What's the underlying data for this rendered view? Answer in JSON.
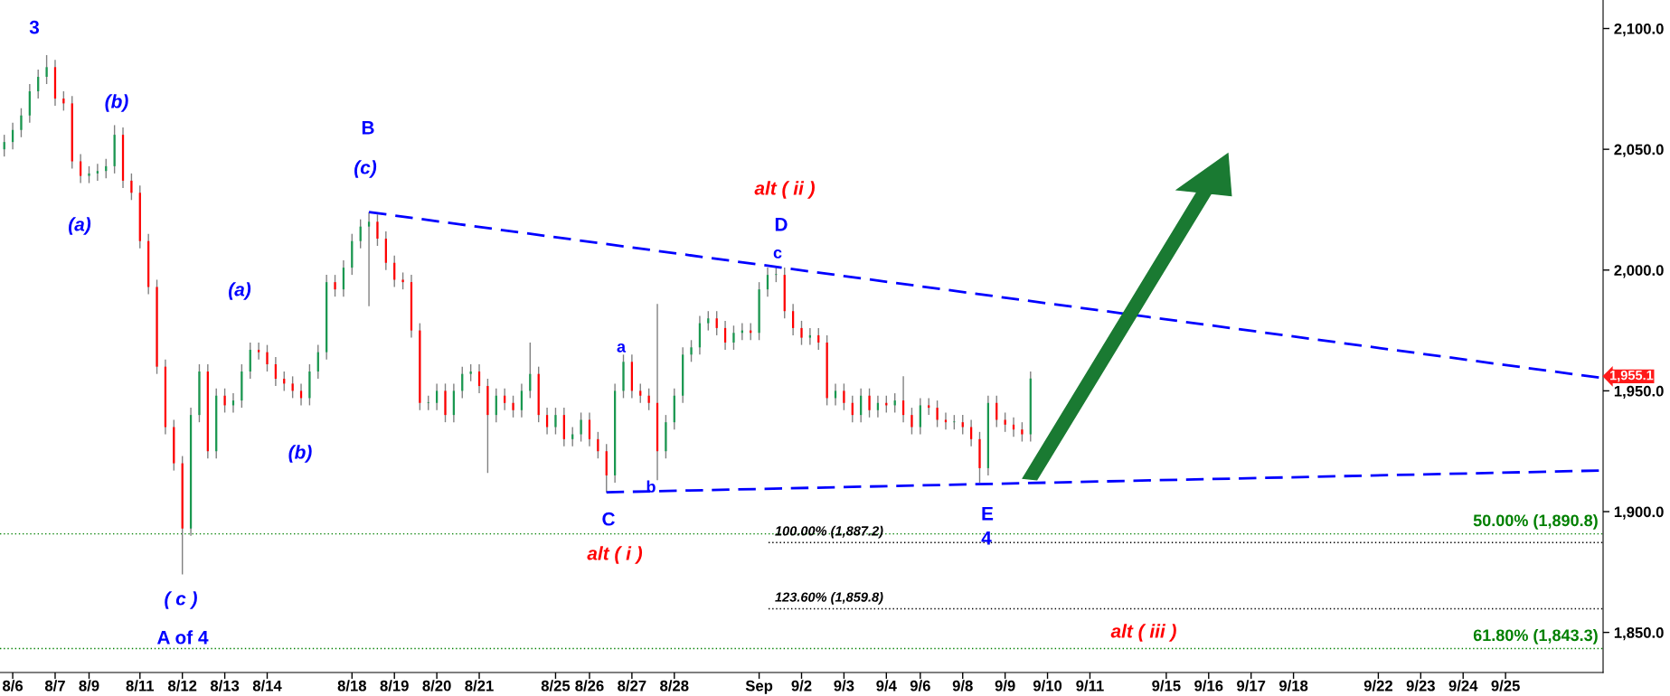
{
  "chart_data": {
    "type": "candlestick",
    "categories": [
      null,
      "8/6",
      null,
      null,
      null,
      null,
      "8/7",
      null,
      null,
      null,
      "8/9",
      null,
      null,
      null,
      null,
      null,
      "8/11",
      null,
      null,
      null,
      null,
      "8/12",
      null,
      null,
      null,
      null,
      "8/13",
      null,
      null,
      null,
      null,
      "8/14",
      null,
      null,
      null,
      null,
      null,
      null,
      null,
      null,
      null,
      "8/18",
      null,
      null,
      null,
      null,
      "8/19",
      null,
      null,
      null,
      null,
      "8/20",
      null,
      null,
      null,
      null,
      "8/21",
      null,
      null,
      null,
      null,
      null,
      null,
      null,
      null,
      "8/25",
      null,
      null,
      null,
      "8/26",
      null,
      null,
      null,
      null,
      "8/27",
      null,
      null,
      null,
      null,
      "8/28",
      null,
      null,
      null,
      null,
      null,
      null,
      null,
      null,
      null,
      "Sep",
      null,
      null,
      null,
      null,
      "9/2",
      null,
      null,
      null,
      null,
      "9/3",
      null,
      null,
      null,
      null,
      "9/4",
      null,
      null,
      null,
      "9/6",
      null,
      null,
      null,
      null,
      "9/8",
      null,
      null,
      null,
      null,
      "9/9",
      null,
      null,
      null,
      null,
      "9/10",
      null,
      null,
      null,
      null,
      "9/11",
      null,
      null,
      null,
      null,
      null,
      null,
      null,
      null,
      "9/15",
      null,
      null,
      null,
      null,
      "9/16",
      null,
      null,
      null,
      null,
      "9/17",
      null,
      null,
      null,
      null,
      "9/18",
      null,
      null,
      null,
      null,
      null,
      null,
      null,
      null,
      null,
      "9/22",
      null,
      null,
      null,
      null,
      "9/23",
      null,
      null,
      null,
      null,
      "9/24",
      null,
      null,
      null,
      null,
      "9/25",
      null,
      null,
      null,
      null,
      null,
      null,
      null,
      null,
      null,
      null,
      null
    ],
    "ohlc": [
      [
        2050,
        2056,
        2047,
        2053
      ],
      [
        2053,
        2061,
        2050,
        2058
      ],
      [
        2058,
        2067,
        2055,
        2064
      ],
      [
        2064,
        2077,
        2061,
        2074
      ],
      [
        2074,
        2083,
        2071,
        2080
      ],
      [
        2080,
        2089,
        2077,
        2084
      ],
      [
        2084,
        2087,
        2068,
        2071
      ],
      [
        2071,
        2074,
        2066,
        2069
      ],
      [
        2069,
        2072,
        2042,
        2045
      ],
      [
        2045,
        2048,
        2036,
        2039
      ],
      [
        2039,
        2043,
        2036,
        2040
      ],
      [
        2040,
        2044,
        2037,
        2041
      ],
      [
        2041,
        2046,
        2038,
        2043
      ],
      [
        2043,
        2060,
        2040,
        2056
      ],
      [
        2056,
        2059,
        2034,
        2037
      ],
      [
        2037,
        2040,
        2029,
        2032
      ],
      [
        2032,
        2035,
        2009,
        2012
      ],
      [
        2012,
        2015,
        1990,
        1993
      ],
      [
        1993,
        1996,
        1957,
        1960
      ],
      [
        1960,
        1963,
        1932,
        1935
      ],
      [
        1935,
        1938,
        1917,
        1920
      ],
      [
        1920,
        1923,
        1874,
        1893
      ],
      [
        1893,
        1943,
        1890,
        1940
      ],
      [
        1940,
        1961,
        1937,
        1958
      ],
      [
        1958,
        1961,
        1922,
        1925
      ],
      [
        1925,
        1951,
        1922,
        1948
      ],
      [
        1948,
        1951,
        1941,
        1944
      ],
      [
        1944,
        1949,
        1941,
        1946
      ],
      [
        1946,
        1961,
        1943,
        1958
      ],
      [
        1958,
        1970,
        1955,
        1967
      ],
      [
        1967,
        1970,
        1963,
        1966
      ],
      [
        1966,
        1969,
        1958,
        1961
      ],
      [
        1961,
        1964,
        1952,
        1955
      ],
      [
        1955,
        1958,
        1950,
        1953
      ],
      [
        1953,
        1956,
        1947,
        1950
      ],
      [
        1950,
        1953,
        1944,
        1947
      ],
      [
        1947,
        1961,
        1944,
        1958
      ],
      [
        1958,
        1969,
        1955,
        1966
      ],
      [
        1966,
        1998,
        1963,
        1995
      ],
      [
        1995,
        1998,
        1989,
        1992
      ],
      [
        1992,
        2004,
        1989,
        2001
      ],
      [
        2001,
        2015,
        1998,
        2012
      ],
      [
        2012,
        2021,
        2009,
        2018
      ],
      [
        2018,
        2024,
        1985,
        2020
      ],
      [
        2020,
        2023,
        2010,
        2013
      ],
      [
        2013,
        2016,
        2000,
        2003
      ],
      [
        2003,
        2006,
        1993,
        1996
      ],
      [
        1996,
        1999,
        1992,
        1995
      ],
      [
        1995,
        1998,
        1972,
        1975
      ],
      [
        1975,
        1978,
        1942,
        1945
      ],
      [
        1945,
        1948,
        1942,
        1945
      ],
      [
        1945,
        1953,
        1942,
        1950
      ],
      [
        1950,
        1953,
        1937,
        1940
      ],
      [
        1940,
        1953,
        1937,
        1950
      ],
      [
        1950,
        1960,
        1947,
        1957
      ],
      [
        1957,
        1961,
        1954,
        1958
      ],
      [
        1958,
        1961,
        1949,
        1952
      ],
      [
        1952,
        1955,
        1916,
        1940
      ],
      [
        1940,
        1951,
        1937,
        1948
      ],
      [
        1948,
        1951,
        1942,
        1945
      ],
      [
        1945,
        1948,
        1939,
        1942
      ],
      [
        1942,
        1953,
        1939,
        1950
      ],
      [
        1950,
        1970,
        1947,
        1957
      ],
      [
        1957,
        1960,
        1937,
        1940
      ],
      [
        1940,
        1943,
        1932,
        1935
      ],
      [
        1935,
        1943,
        1932,
        1940
      ],
      [
        1940,
        1943,
        1927,
        1930
      ],
      [
        1930,
        1935,
        1927,
        1932
      ],
      [
        1932,
        1941,
        1929,
        1938
      ],
      [
        1938,
        1941,
        1927,
        1930
      ],
      [
        1930,
        1933,
        1922,
        1925
      ],
      [
        1925,
        1928,
        1908,
        1915
      ],
      [
        1915,
        1953,
        1912,
        1950
      ],
      [
        1950,
        1965,
        1947,
        1962
      ],
      [
        1962,
        1965,
        1947,
        1950
      ],
      [
        1950,
        1953,
        1945,
        1948
      ],
      [
        1948,
        1951,
        1942,
        1945
      ],
      [
        1945,
        1986,
        1913,
        1925
      ],
      [
        1925,
        1940,
        1922,
        1937
      ],
      [
        1937,
        1951,
        1934,
        1948
      ],
      [
        1948,
        1968,
        1945,
        1965
      ],
      [
        1965,
        1971,
        1962,
        1968
      ],
      [
        1968,
        1981,
        1965,
        1978
      ],
      [
        1978,
        1983,
        1975,
        1980
      ],
      [
        1980,
        1983,
        1973,
        1976
      ],
      [
        1976,
        1979,
        1967,
        1970
      ],
      [
        1970,
        1977,
        1967,
        1974
      ],
      [
        1974,
        1978,
        1971,
        1975
      ],
      [
        1975,
        1978,
        1971,
        1974
      ],
      [
        1974,
        1995,
        1971,
        1992
      ],
      [
        1992,
        2001,
        1989,
        1998
      ],
      [
        1998,
        2001,
        1995,
        1998
      ],
      [
        1998,
        2001,
        1980,
        1983
      ],
      [
        1983,
        1986,
        1973,
        1976
      ],
      [
        1976,
        1979,
        1969,
        1972
      ],
      [
        1972,
        1976,
        1969,
        1973
      ],
      [
        1973,
        1976,
        1967,
        1970
      ],
      [
        1970,
        1973,
        1944,
        1947
      ],
      [
        1947,
        1953,
        1944,
        1950
      ],
      [
        1950,
        1953,
        1942,
        1945
      ],
      [
        1945,
        1948,
        1937,
        1940
      ],
      [
        1940,
        1951,
        1937,
        1948
      ],
      [
        1948,
        1951,
        1939,
        1942
      ],
      [
        1942,
        1948,
        1939,
        1945
      ],
      [
        1945,
        1948,
        1941,
        1944
      ],
      [
        1944,
        1949,
        1941,
        1946
      ],
      [
        1946,
        1956,
        1937,
        1940
      ],
      [
        1940,
        1943,
        1932,
        1935
      ],
      [
        1935,
        1947,
        1932,
        1944
      ],
      [
        1944,
        1947,
        1940,
        1943
      ],
      [
        1943,
        1946,
        1935,
        1938
      ],
      [
        1938,
        1941,
        1934,
        1937
      ],
      [
        1937,
        1940,
        1934,
        1937
      ],
      [
        1937,
        1940,
        1932,
        1935
      ],
      [
        1935,
        1938,
        1927,
        1930
      ],
      [
        1930,
        1933,
        1912,
        1918
      ],
      [
        1918,
        1948,
        1915,
        1945
      ],
      [
        1945,
        1948,
        1935,
        1938
      ],
      [
        1938,
        1941,
        1933,
        1936
      ],
      [
        1936,
        1939,
        1931,
        1934
      ],
      [
        1934,
        1937,
        1929,
        1932
      ],
      [
        1932,
        1958,
        1929,
        1955.1
      ],
      null,
      null,
      null,
      null,
      null,
      null,
      null,
      null,
      null,
      null,
      null,
      null,
      null,
      null,
      null,
      null,
      null,
      null,
      null,
      null,
      null,
      null,
      null,
      null,
      null,
      null,
      null,
      null,
      null,
      null,
      null,
      null,
      null,
      null,
      null,
      null,
      null,
      null,
      null,
      null,
      null,
      null,
      null,
      null,
      null,
      null,
      null,
      null,
      null,
      null,
      null,
      null,
      null,
      null,
      null,
      null,
      null,
      null,
      null,
      null,
      null,
      null,
      null,
      null,
      null,
      null,
      null
    ],
    "series": [
      {
        "type": "line",
        "color": "#0000ff",
        "line_style": "dashed",
        "values": [
          null,
          null,
          null,
          null,
          null,
          null,
          null,
          null,
          null,
          null,
          null,
          null,
          null,
          null,
          null,
          null,
          null,
          null,
          null,
          null,
          null,
          null,
          null,
          null,
          null,
          null,
          null,
          null,
          null,
          null,
          null,
          null,
          null,
          null,
          null,
          null,
          null,
          null,
          null,
          null,
          null,
          null,
          null,
          2024,
          null,
          null,
          null,
          null,
          null,
          null,
          null,
          null,
          null,
          null,
          null,
          null,
          null,
          null,
          null,
          null,
          null,
          null,
          null,
          null,
          null,
          null,
          null,
          null,
          null,
          null,
          null,
          null,
          null,
          null,
          null,
          null,
          null,
          null,
          null,
          null,
          null,
          null,
          null,
          null,
          null,
          null,
          null,
          null,
          null,
          null,
          null,
          null,
          null,
          null,
          null,
          null,
          null,
          null,
          null,
          null,
          null,
          null,
          null,
          null,
          null,
          null,
          null,
          null,
          null,
          null,
          null,
          null,
          null,
          null,
          null,
          null,
          null,
          null,
          null,
          null,
          null,
          null,
          null,
          null,
          null,
          null,
          null,
          null,
          null,
          null,
          null,
          null,
          null,
          null,
          null,
          null,
          null,
          null,
          null,
          null,
          null,
          null,
          null,
          null,
          null,
          null,
          null,
          null,
          null,
          null,
          null,
          null,
          null,
          null,
          null,
          null,
          null,
          null,
          null,
          null,
          null,
          null,
          null,
          null,
          null,
          null,
          null,
          null,
          null,
          null,
          null,
          null,
          null,
          null,
          null,
          null,
          null,
          null,
          null,
          null,
          null,
          null,
          null,
          null,
          null,
          null,
          null,
          null,
          1955.5
        ]
      },
      {
        "type": "line",
        "color": "#0000ff",
        "line_style": "dashed",
        "values": [
          null,
          null,
          null,
          null,
          null,
          null,
          null,
          null,
          null,
          null,
          null,
          null,
          null,
          null,
          null,
          null,
          null,
          null,
          null,
          null,
          null,
          null,
          null,
          null,
          null,
          null,
          null,
          null,
          null,
          null,
          null,
          null,
          null,
          null,
          null,
          null,
          null,
          null,
          null,
          null,
          null,
          null,
          null,
          null,
          null,
          null,
          null,
          null,
          null,
          null,
          null,
          null,
          null,
          null,
          null,
          null,
          null,
          null,
          null,
          null,
          null,
          null,
          null,
          null,
          null,
          null,
          null,
          null,
          null,
          null,
          null,
          1908,
          null,
          null,
          null,
          null,
          null,
          null,
          null,
          null,
          null,
          null,
          null,
          null,
          null,
          null,
          null,
          null,
          null,
          null,
          null,
          null,
          null,
          null,
          null,
          null,
          null,
          null,
          null,
          null,
          null,
          null,
          null,
          null,
          null,
          null,
          null,
          null,
          null,
          null,
          null,
          null,
          null,
          null,
          null,
          null,
          null,
          null,
          null,
          null,
          null,
          null,
          null,
          null,
          null,
          null,
          null,
          null,
          null,
          null,
          null,
          null,
          null,
          null,
          null,
          null,
          null,
          null,
          null,
          null,
          null,
          null,
          null,
          null,
          null,
          null,
          null,
          null,
          null,
          null,
          null,
          null,
          null,
          null,
          null,
          null,
          null,
          null,
          null,
          null,
          null,
          null,
          null,
          null,
          null,
          null,
          null,
          null,
          null,
          null,
          null,
          null,
          null,
          null,
          null,
          null,
          null,
          null,
          null,
          null,
          null,
          null,
          null,
          null,
          null,
          null,
          null,
          null,
          1917
        ]
      }
    ],
    "ylim": [
      1833.4,
      2111.8
    ],
    "yticks": [
      {
        "value": 1850,
        "label": "1,850.0"
      },
      {
        "value": 1900,
        "label": "1,900.0"
      },
      {
        "value": 1950,
        "label": "1,950.0"
      },
      {
        "value": 2000,
        "label": "2,000.0"
      },
      {
        "value": 2050,
        "label": "2,050.0"
      },
      {
        "value": 2100,
        "label": "2,100.0"
      }
    ],
    "ref_lines": [
      {
        "axis": "y",
        "value": 1890.8,
        "label": "50.00% (1,890.8)",
        "color": "#008000",
        "line_style": "dotted"
      },
      {
        "axis": "y",
        "value": 1843.3,
        "label": "61.80% (1,843.3)",
        "color": "#008000",
        "line_style": "dotted"
      },
      {
        "axis": "y",
        "value": 1887.2,
        "label": "100.00% (1,887.2)",
        "color": "#000000",
        "line_style": "dotted"
      },
      {
        "axis": "y",
        "value": 1859.8,
        "label": "123.60% (1,859.8)",
        "color": "#000000",
        "line_style": "dotted"
      }
    ],
    "annotations": [
      "3",
      "(b)",
      "(a)",
      "B",
      "(c)",
      "(a)",
      "(b)",
      "( c )",
      "A of 4",
      "alt ( ii )",
      "D",
      "c",
      "a",
      "b",
      "C",
      "alt ( i )",
      "E",
      "4",
      "alt ( iii )",
      "1,955.1"
    ],
    "grid": false,
    "legend": false
  }
}
